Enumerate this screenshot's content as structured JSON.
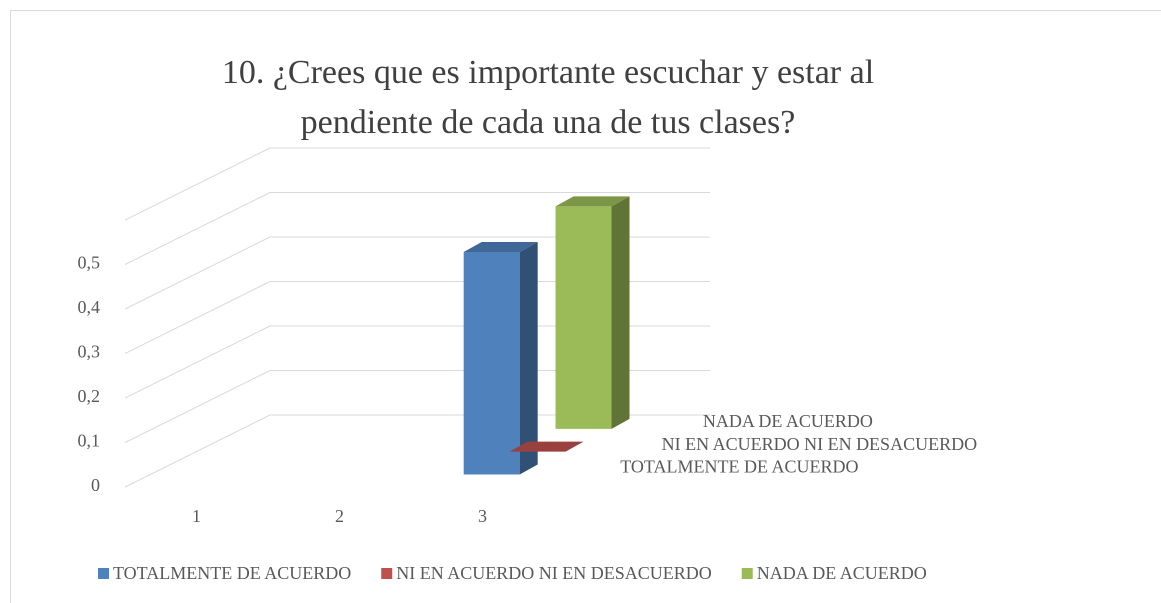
{
  "chart_data": {
    "type": "bar3d",
    "title": [
      "10. ¿Crees que es importante escuchar y estar al",
      "pendiente de cada una de tus clases?"
    ],
    "categories": [
      "1",
      "2",
      "3"
    ],
    "series": [
      {
        "name": "TOTALMENTE DE ACUERDO",
        "color": "#4f81bd",
        "values": [
          null,
          null,
          0.5
        ]
      },
      {
        "name": "NI EN ACUERDO NI EN DESACUERDO",
        "color": "#c0504d",
        "values": [
          null,
          null,
          0
        ]
      },
      {
        "name": "NADA DE ACUERDO",
        "color": "#9bbb59",
        "values": [
          null,
          null,
          0.5
        ]
      }
    ],
    "ylim": [
      0,
      0.6
    ],
    "yticks": [
      0,
      {
        "value": 0.1,
        "label": "0,1"
      },
      {
        "value": 0.2,
        "label": "0,2"
      },
      {
        "value": 0.3,
        "label": "0,3"
      },
      {
        "value": 0.4,
        "label": "0,4"
      },
      {
        "value": 0.5,
        "label": "0,5"
      }
    ],
    "grid": true,
    "legend": "bottom"
  }
}
